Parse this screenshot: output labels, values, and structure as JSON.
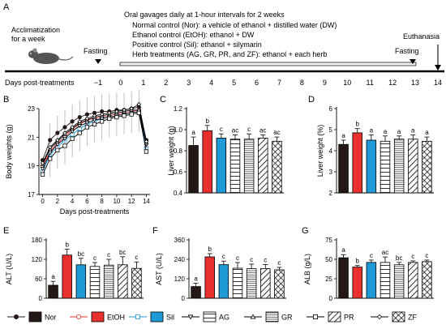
{
  "colors": {
    "nor": "#231815",
    "etoh": "#e8312f",
    "sil": "#1e9ad6",
    "pattern_bg": "#ffffff",
    "ink": "#000000",
    "error_bar": "#b0b0b0"
  },
  "panel_a": {
    "letter": "A",
    "acclimatization": [
      "Acclimatization",
      "for a week"
    ],
    "fasting_start": "Fasting",
    "gavage_title": "Oral gavages daily at 1-hour intervals for 2 weeks",
    "group_lines": [
      "Normal control (Nor): a vehicle of ethanol + distilled water (DW)",
      "Ethanol control (EtOH): ethanol + DW",
      "Positive control (Sil): ethanol + silymarin",
      "Herb treatments (AG, GR, PR, and ZF): ethanol + each herb"
    ],
    "euthanasia": "Euthanasia",
    "fasting_end": "Fasting",
    "timeline_label": "Days post-treatments",
    "timeline_ticks": [
      "−1",
      "0",
      "1",
      "2",
      "3",
      "4",
      "5",
      "6",
      "7",
      "8",
      "9",
      "10",
      "11",
      "12",
      "13",
      "14"
    ]
  },
  "legend": [
    {
      "name": "Nor",
      "marker": "circle-filled",
      "fill": "nor"
    },
    {
      "name": "EtOH",
      "marker": "circle-open",
      "fill": "etoh"
    },
    {
      "name": "Sil",
      "marker": "square-open",
      "fill": "sil"
    },
    {
      "name": "AG",
      "marker": "triangle-down",
      "fill": "hatch-h"
    },
    {
      "name": "GR",
      "marker": "triangle-up",
      "fill": "hatch-h-dense"
    },
    {
      "name": "PR",
      "marker": "square-small",
      "fill": "hatch-diag"
    },
    {
      "name": "ZF",
      "marker": "diamond",
      "fill": "hatch-cross"
    }
  ],
  "chart_data": [
    {
      "panel": "B",
      "type": "line",
      "xlabel": "Days post-treatments",
      "ylabel": "Body weights (g)",
      "xlim": [
        -0.5,
        14.5
      ],
      "ylim": [
        17,
        23
      ],
      "xticks": [
        0,
        2,
        4,
        6,
        8,
        10,
        12,
        14
      ],
      "yticks": [
        17,
        19,
        21,
        23
      ],
      "x": [
        0,
        1,
        2,
        3,
        4,
        5,
        6,
        7,
        8,
        9,
        10,
        11,
        12,
        13,
        14
      ],
      "series": [
        {
          "name": "Nor",
          "values": [
            19.4,
            20.8,
            21.3,
            21.7,
            22.1,
            22.4,
            22.6,
            22.7,
            22.8,
            22.8,
            22.9,
            22.9,
            23.0,
            23.1,
            20.8
          ]
        },
        {
          "name": "EtOH",
          "values": [
            19.0,
            20.0,
            20.6,
            21.0,
            21.6,
            21.9,
            22.2,
            22.3,
            22.4,
            22.5,
            22.6,
            22.7,
            22.8,
            22.9,
            20.3
          ]
        },
        {
          "name": "Sil",
          "values": [
            18.6,
            19.8,
            20.3,
            20.8,
            21.2,
            21.6,
            21.9,
            22.1,
            22.3,
            22.4,
            22.5,
            22.6,
            22.7,
            22.8,
            20.2
          ]
        },
        {
          "name": "AG",
          "values": [
            18.8,
            19.9,
            20.5,
            20.9,
            21.4,
            21.8,
            22.0,
            22.2,
            22.3,
            22.4,
            22.5,
            22.6,
            22.7,
            22.8,
            20.5
          ]
        },
        {
          "name": "GR",
          "values": [
            19.1,
            20.2,
            20.7,
            21.2,
            21.6,
            22.0,
            22.2,
            22.4,
            22.5,
            22.6,
            22.7,
            22.8,
            22.9,
            22.9,
            20.6
          ]
        },
        {
          "name": "PR",
          "values": [
            18.4,
            19.5,
            20.1,
            20.4,
            20.9,
            21.3,
            21.7,
            21.9,
            22.1,
            22.3,
            22.4,
            22.5,
            22.6,
            22.7,
            20.0
          ]
        },
        {
          "name": "ZF",
          "values": [
            19.2,
            20.3,
            20.8,
            21.3,
            21.7,
            22.1,
            22.3,
            22.5,
            22.6,
            22.7,
            22.8,
            22.9,
            23.0,
            23.3,
            20.7
          ]
        }
      ]
    },
    {
      "panel": "C",
      "type": "bar",
      "ylabel": "Liver weight (g)",
      "ylim": [
        0.4,
        1.2
      ],
      "yticks": [
        0.4,
        0.6,
        0.8,
        1.0,
        1.2
      ],
      "ytick_labels": [
        "0.4",
        "0.6",
        "0.8",
        "1.0",
        "1.2"
      ],
      "categories": [
        "Nor",
        "EtOH",
        "Sil",
        "AG",
        "GR",
        "PR",
        "ZF"
      ],
      "values": [
        0.85,
        0.99,
        0.92,
        0.91,
        0.91,
        0.92,
        0.89
      ],
      "errors": [
        0.08,
        0.05,
        0.04,
        0.04,
        0.05,
        0.03,
        0.04
      ],
      "letters": [
        "a",
        "b",
        "c",
        "ac",
        "c",
        "ac",
        "ac"
      ]
    },
    {
      "panel": "D",
      "type": "bar",
      "ylabel": "Liver weight (%)",
      "ylim": [
        2,
        6
      ],
      "yticks": [
        2,
        3,
        4,
        5,
        6
      ],
      "ytick_labels": [
        "2",
        "3",
        "4",
        "5",
        "6"
      ],
      "categories": [
        "Nor",
        "EtOH",
        "Sil",
        "AG",
        "GR",
        "PR",
        "ZF"
      ],
      "values": [
        4.3,
        4.85,
        4.5,
        4.45,
        4.55,
        4.55,
        4.45
      ],
      "errors": [
        0.2,
        0.2,
        0.25,
        0.25,
        0.15,
        0.2,
        0.2
      ],
      "letters": [
        "a",
        "b",
        "a",
        "a",
        "a",
        "a",
        "a"
      ]
    },
    {
      "panel": "E",
      "type": "bar",
      "ylabel": "ALT (U/L)",
      "ylim": [
        0,
        180
      ],
      "yticks": [
        0,
        60,
        120,
        180
      ],
      "ytick_labels": [
        "0",
        "60",
        "120",
        "180"
      ],
      "categories": [
        "Nor",
        "EtOH",
        "Sil",
        "AG",
        "GR",
        "PR",
        "ZF"
      ],
      "values": [
        40,
        133,
        103,
        98,
        102,
        103,
        92
      ],
      "errors": [
        12,
        18,
        20,
        12,
        18,
        25,
        20
      ],
      "letters": [
        "a",
        "b",
        "bc",
        "c",
        "c",
        "bc",
        "c"
      ]
    },
    {
      "panel": "F",
      "type": "bar",
      "ylabel": "AST (U/L)",
      "ylim": [
        0,
        360
      ],
      "yticks": [
        0,
        120,
        240,
        360
      ],
      "ytick_labels": [
        "0",
        "120",
        "240",
        "360"
      ],
      "categories": [
        "Nor",
        "EtOH",
        "Sil",
        "AG",
        "GR",
        "PR",
        "ZF"
      ],
      "values": [
        72,
        255,
        207,
        185,
        182,
        183,
        175
      ],
      "errors": [
        20,
        20,
        22,
        35,
        28,
        25,
        15
      ],
      "letters": [
        "a",
        "b",
        "c",
        "c",
        "c",
        "c",
        "c"
      ]
    },
    {
      "panel": "G",
      "type": "bar",
      "ylabel": "ALB (g/L)",
      "ylim": [
        0,
        75
      ],
      "yticks": [
        0,
        25,
        50,
        75
      ],
      "ytick_labels": [
        "0",
        "25",
        "50",
        "75"
      ],
      "categories": [
        "Nor",
        "EtOH",
        "Sil",
        "AG",
        "GR",
        "PR",
        "ZF"
      ],
      "values": [
        52,
        40,
        46,
        46,
        43,
        46,
        47
      ],
      "errors": [
        4,
        2,
        3,
        7,
        3,
        2,
        2
      ],
      "letters": [
        "a",
        "b",
        "c",
        "ac",
        "bc",
        "c",
        "c"
      ]
    }
  ]
}
